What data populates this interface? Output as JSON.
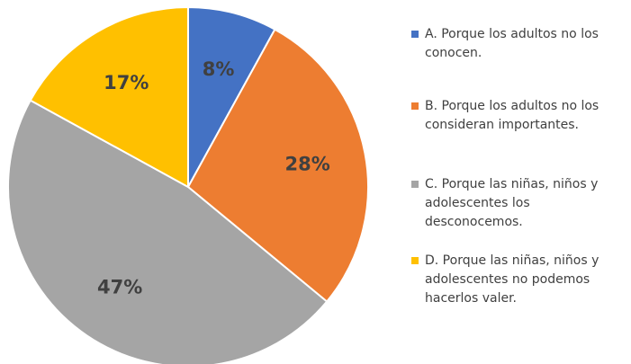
{
  "chart_data": {
    "type": "pie",
    "start_angle_deg": 0,
    "direction": "clockwise",
    "legend_position": "right",
    "slices": [
      {
        "label": "A. Porque los adultos no los conocen.",
        "value": 8,
        "data_label": "8%",
        "color": "#4472C4"
      },
      {
        "label": "B. Porque los adultos no los consideran importantes.",
        "value": 28,
        "data_label": "28%",
        "color": "#ED7D31"
      },
      {
        "label": "C. Porque las niñas, niños y adolescentes los desconocemos.",
        "value": 47,
        "data_label": "47%",
        "color": "#A5A5A5"
      },
      {
        "label": "D. Porque las niñas, niños y adolescentes no podemos hacerlos valer.",
        "value": 17,
        "data_label": "17%",
        "color": "#FFC000"
      }
    ]
  }
}
